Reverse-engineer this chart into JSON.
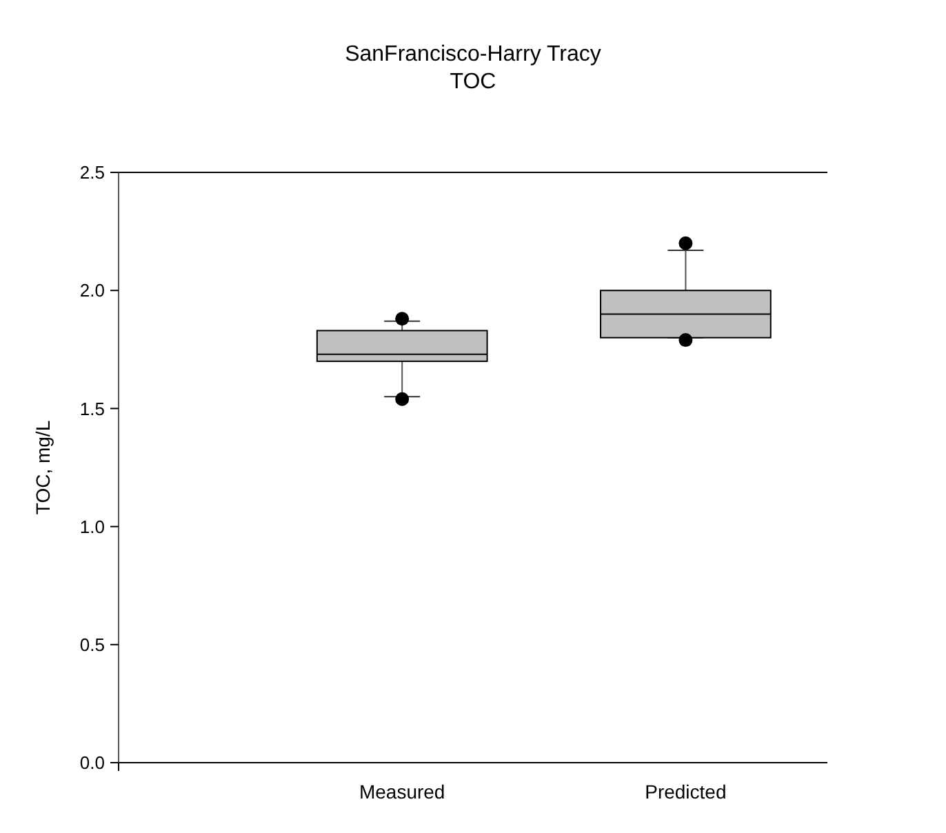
{
  "chart_data": {
    "type": "box",
    "title": "SanFrancisco-Harry Tracy",
    "subtitle": "TOC",
    "ylabel": "TOC, mg/L",
    "categories": [
      "Measured",
      "Predicted"
    ],
    "color": "#c0c0c0",
    "boxes": [
      {
        "low": 1.55,
        "q1": 1.7,
        "median": 1.73,
        "q3": 1.83,
        "high": 1.87,
        "outliers": [
          1.88,
          1.54
        ]
      },
      {
        "low": 1.8,
        "q1": 1.8,
        "median": 1.9,
        "q3": 2.0,
        "high": 2.17,
        "outliers": [
          2.2,
          1.79
        ]
      }
    ],
    "ylim": [
      0,
      2.5
    ],
    "yticks": [
      {
        "value": 0,
        "label": "0.0"
      },
      {
        "value": 0.5,
        "label": "0.5"
      },
      {
        "value": 1,
        "label": "1.0"
      },
      {
        "value": 1.5,
        "label": "1.5"
      },
      {
        "value": 2,
        "label": "2.0"
      },
      {
        "value": 2.5,
        "label": "2.5"
      }
    ],
    "grid": false
  }
}
